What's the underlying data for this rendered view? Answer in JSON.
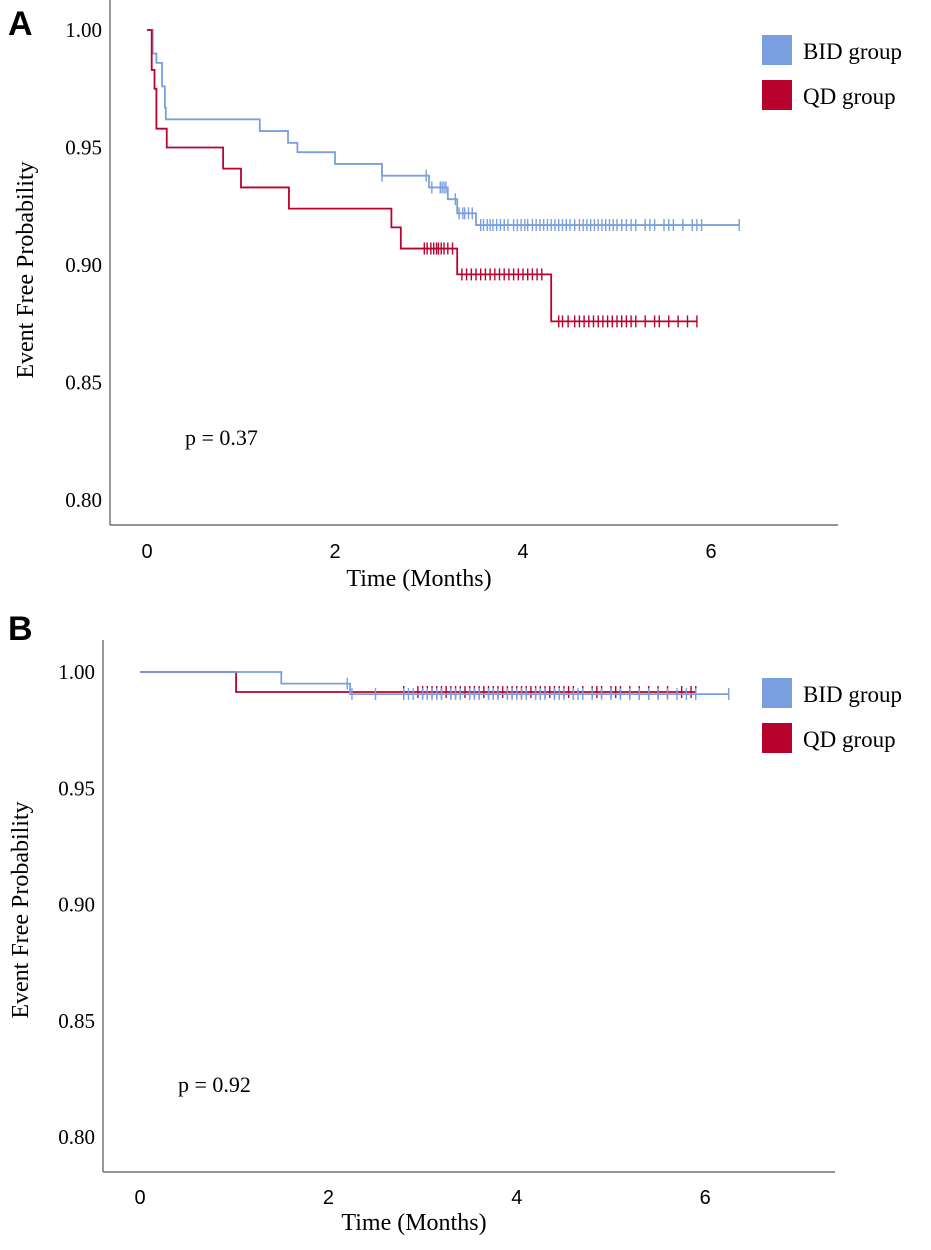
{
  "colors": {
    "bid": "#7A9FE0",
    "qd": "#B8032E"
  },
  "chart_data": [
    {
      "panel_label": "A",
      "type": "line",
      "subtype": "kaplan-meier",
      "xlabel": "Time (Months)",
      "ylabel": "Event Free Probability",
      "xlim": [
        -0.4,
        7.3
      ],
      "ylim": [
        0.788,
        1.01
      ],
      "xticks": [
        0,
        2,
        4,
        6
      ],
      "yticks": [
        1.0,
        0.95,
        0.9,
        0.85,
        0.8
      ],
      "ytick_labels": [
        "1.00",
        "0.95",
        "0.90",
        "0.85",
        "0.80"
      ],
      "grid": false,
      "legend": "top-right",
      "annotation": "p = 0.37",
      "series": [
        {
          "name": "BID group",
          "color": "#7A9FE0",
          "step_times": [
            0,
            0.06,
            0.1,
            0.16,
            0.19,
            0.2,
            1.2,
            1.5,
            1.6,
            2.0,
            2.5,
            3.0,
            3.2,
            3.3,
            3.5
          ],
          "survival": [
            1,
            0.99,
            0.986,
            0.976,
            0.967,
            0.962,
            0.957,
            0.952,
            0.948,
            0.943,
            0.938,
            0.933,
            0.928,
            0.922,
            0.917
          ],
          "end_time": 6.3,
          "censored": [
            2.5,
            2.97,
            3.03,
            3.12,
            3.14,
            3.16,
            3.18,
            3.28,
            3.32,
            3.36,
            3.38,
            3.42,
            3.46,
            3.55,
            3.58,
            3.62,
            3.65,
            3.68,
            3.72,
            3.76,
            3.8,
            3.84,
            3.9,
            3.94,
            3.98,
            4.02,
            4.05,
            4.1,
            4.14,
            4.18,
            4.22,
            4.26,
            4.3,
            4.34,
            4.38,
            4.42,
            4.46,
            4.5,
            4.55,
            4.6,
            4.64,
            4.68,
            4.72,
            4.76,
            4.8,
            4.84,
            4.88,
            4.92,
            4.96,
            5.0,
            5.05,
            5.1,
            5.15,
            5.2,
            5.3,
            5.35,
            5.4,
            5.5,
            5.55,
            5.6,
            5.7,
            5.8,
            5.85,
            5.9,
            6.3
          ]
        },
        {
          "name": "QD group",
          "color": "#B8032E",
          "step_times": [
            0,
            0.05,
            0.08,
            0.1,
            0.21,
            0.81,
            1.0,
            1.51,
            2.6,
            2.7,
            3.3,
            4.3
          ],
          "survival": [
            1,
            0.983,
            0.975,
            0.958,
            0.95,
            0.941,
            0.933,
            0.924,
            0.916,
            0.907,
            0.896,
            0.876
          ],
          "end_time": 5.85,
          "censored": [
            2.95,
            2.98,
            3.02,
            3.05,
            3.08,
            3.1,
            3.13,
            3.16,
            3.2,
            3.25,
            3.35,
            3.4,
            3.45,
            3.5,
            3.55,
            3.6,
            3.65,
            3.7,
            3.75,
            3.8,
            3.85,
            3.9,
            3.95,
            4.0,
            4.05,
            4.1,
            4.15,
            4.2,
            4.38,
            4.42,
            4.48,
            4.55,
            4.6,
            4.65,
            4.7,
            4.75,
            4.8,
            4.85,
            4.9,
            4.95,
            5.0,
            5.05,
            5.1,
            5.15,
            5.2,
            5.3,
            5.4,
            5.45,
            5.55,
            5.65,
            5.75,
            5.85
          ]
        }
      ]
    },
    {
      "panel_label": "B",
      "type": "line",
      "subtype": "kaplan-meier",
      "xlabel": "Time (Months)",
      "ylabel": "Event Free Probability",
      "xlim": [
        -0.4,
        7.3
      ],
      "ylim": [
        0.785,
        1.01
      ],
      "xticks": [
        0,
        2,
        4,
        6
      ],
      "yticks": [
        1.0,
        0.95,
        0.9,
        0.85,
        0.8
      ],
      "ytick_labels": [
        "1.00",
        "0.95",
        "0.90",
        "0.85",
        "0.80"
      ],
      "grid": false,
      "legend": "top-right",
      "annotation": "p = 0.92",
      "series": [
        {
          "name": "BID group",
          "color": "#7A9FE0",
          "step_times": [
            0,
            1.5,
            2.23
          ],
          "survival": [
            1,
            0.995,
            0.9905
          ],
          "end_time": 6.25,
          "censored": [
            2.2,
            2.25,
            2.5,
            2.8,
            2.85,
            2.9,
            3.0,
            3.05,
            3.1,
            3.15,
            3.2,
            3.3,
            3.35,
            3.4,
            3.5,
            3.55,
            3.6,
            3.7,
            3.75,
            3.8,
            3.9,
            3.95,
            4.0,
            4.05,
            4.1,
            4.2,
            4.25,
            4.3,
            4.4,
            4.45,
            4.5,
            4.6,
            4.65,
            4.7,
            4.8,
            4.9,
            5.0,
            5.1,
            5.2,
            5.3,
            5.4,
            5.5,
            5.6,
            5.7,
            5.8,
            5.9,
            6.25
          ]
        },
        {
          "name": "QD group",
          "color": "#B8032E",
          "step_times": [
            0,
            1.02
          ],
          "survival": [
            1,
            0.9914
          ],
          "end_time": 5.9,
          "censored": [
            2.8,
            2.95,
            3.0,
            3.05,
            3.1,
            3.15,
            3.2,
            3.25,
            3.3,
            3.35,
            3.4,
            3.45,
            3.5,
            3.55,
            3.6,
            3.65,
            3.7,
            3.75,
            3.8,
            3.85,
            3.9,
            3.95,
            4.0,
            4.05,
            4.1,
            4.15,
            4.2,
            4.25,
            4.3,
            4.35,
            4.4,
            4.45,
            4.5,
            4.55,
            4.6,
            4.7,
            4.8,
            4.85,
            4.9,
            5.0,
            5.05,
            5.1,
            5.2,
            5.3,
            5.4,
            5.5,
            5.6,
            5.75,
            5.85,
            5.9
          ]
        }
      ]
    }
  ]
}
